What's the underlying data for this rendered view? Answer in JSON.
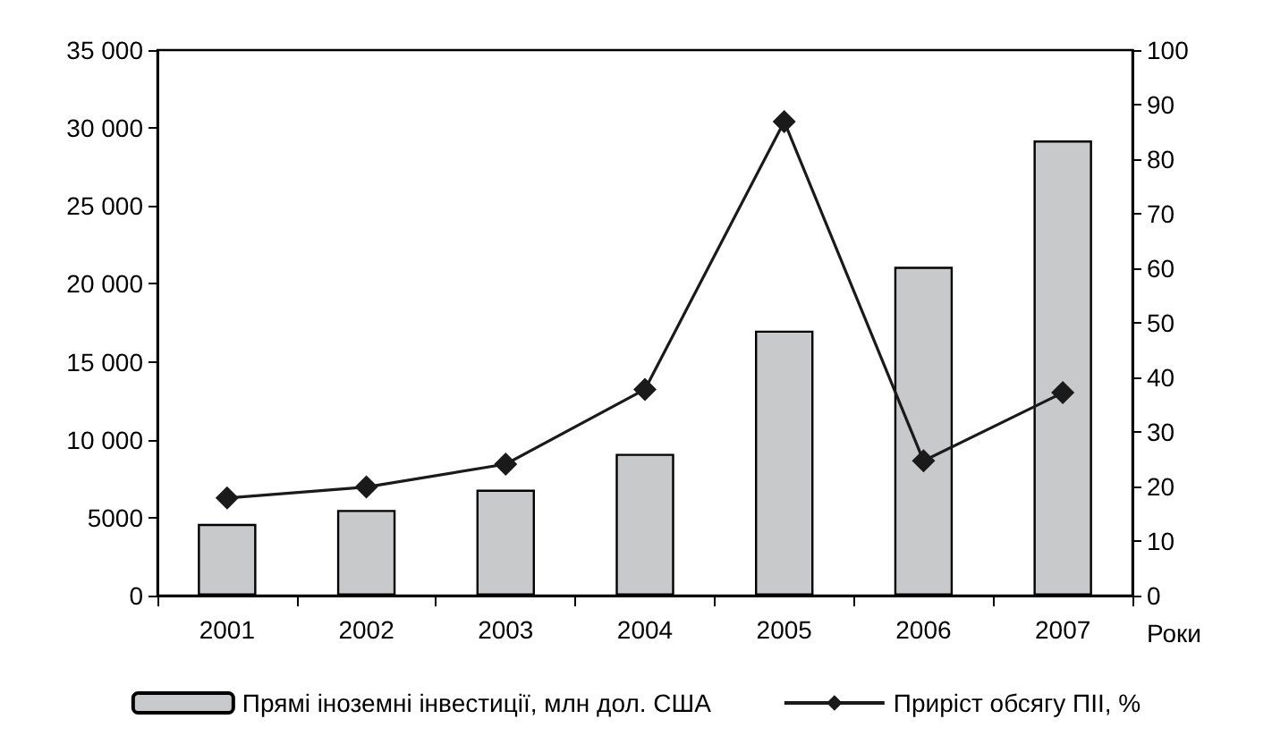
{
  "chart_data": {
    "type": "bar",
    "xlabel": "Роки",
    "categories": [
      "2001",
      "2002",
      "2003",
      "2004",
      "2005",
      "2006",
      "2007"
    ],
    "series": [
      {
        "name": "Прямі іноземні інвестиції, млн дол. США",
        "color": "#c8c9cb",
        "values": [
          4600,
          5500,
          6800,
          9100,
          17000,
          21100,
          29200
        ]
      },
      {
        "name": "Приріст обсягу ПІІ, %",
        "type": "line",
        "axis": "y2",
        "color": "#1a1a1a",
        "marker": "diamond",
        "values": [
          17.9,
          19.9,
          24.1,
          37.8,
          86.9,
          24.7,
          37.2
        ]
      }
    ],
    "ylim": [
      0,
      35000
    ],
    "yticks": [
      0,
      {
        "value": 5000,
        "label": "5000"
      },
      {
        "value": 10000,
        "label": "10 000"
      },
      {
        "value": 15000,
        "label": "15 000"
      },
      {
        "value": 20000,
        "label": "20 000"
      },
      {
        "value": 25000,
        "label": "25 000"
      },
      {
        "value": 30000,
        "label": "30 000"
      },
      {
        "value": 35000,
        "label": "35 000"
      }
    ],
    "y2lim": [
      0,
      100
    ],
    "y2ticks": [
      0,
      10,
      20,
      30,
      40,
      50,
      60,
      70,
      80,
      90,
      100
    ],
    "grid": false,
    "legend": "bottom"
  }
}
